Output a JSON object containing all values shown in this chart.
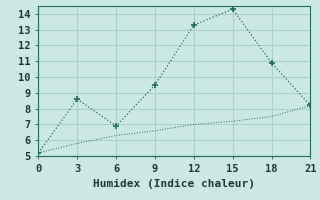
{
  "line1_x": [
    0,
    3,
    6,
    9,
    12,
    15,
    18,
    21
  ],
  "line1_y": [
    5.2,
    8.6,
    6.9,
    9.5,
    13.3,
    14.3,
    10.9,
    8.2
  ],
  "line2_x": [
    0,
    3,
    6,
    9,
    12,
    15,
    18,
    21
  ],
  "line2_y": [
    5.2,
    5.8,
    6.3,
    6.6,
    7.0,
    7.2,
    7.5,
    8.2
  ],
  "line_color": "#1e6b5e",
  "bg_color": "#cce8e5",
  "grid_color": "#aacfcc",
  "xlabel": "Humidex (Indice chaleur)",
  "xlim": [
    0,
    21
  ],
  "ylim": [
    5,
    14.5
  ],
  "xticks": [
    0,
    3,
    6,
    9,
    12,
    15,
    18,
    21
  ],
  "yticks": [
    5,
    6,
    7,
    8,
    9,
    10,
    11,
    12,
    13,
    14
  ],
  "xlabel_fontsize": 8,
  "tick_fontsize": 7.5
}
